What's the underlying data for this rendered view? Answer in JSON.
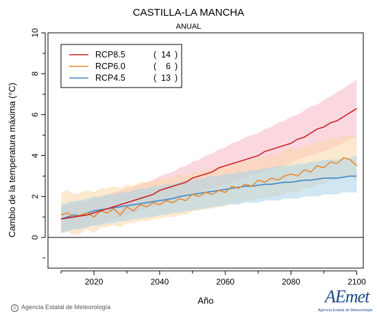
{
  "header": {
    "title": "CASTILLA-LA MANCHA",
    "subtitle": "ANUAL"
  },
  "footer": {
    "credit": "Agencia Estatal de Meteorología",
    "logo_text": "AEmet",
    "logo_caption": "Agencia Estatal de Meteorología"
  },
  "chart_data": {
    "type": "line",
    "title": "CASTILLA-LA MANCHA",
    "subtitle": "ANUAL",
    "xlabel": "Año",
    "ylabel": "Cambio de la temperatura máxima (°C)",
    "xlim": [
      2006,
      2102
    ],
    "ylim": [
      -1.5,
      10
    ],
    "x_ticks": [
      2020,
      2040,
      2060,
      2080,
      2100
    ],
    "y_ticks": [
      0,
      2,
      4,
      6,
      8,
      10
    ],
    "grid": false,
    "zero_line": 0,
    "legend_position": "top-left",
    "x": [
      2010,
      2012,
      2014,
      2016,
      2018,
      2020,
      2022,
      2024,
      2026,
      2028,
      2030,
      2032,
      2034,
      2036,
      2038,
      2040,
      2042,
      2044,
      2046,
      2048,
      2050,
      2052,
      2054,
      2056,
      2058,
      2060,
      2062,
      2064,
      2066,
      2068,
      2070,
      2072,
      2074,
      2076,
      2078,
      2080,
      2082,
      2084,
      2086,
      2088,
      2090,
      2092,
      2094,
      2096,
      2098,
      2100
    ],
    "series": [
      {
        "name": "RCP8.5",
        "count": "14",
        "color": "#cc2222",
        "band_color": "#f7b8c4",
        "values": [
          0.9,
          0.95,
          1.0,
          1.05,
          1.1,
          1.2,
          1.3,
          1.4,
          1.5,
          1.6,
          1.7,
          1.8,
          1.9,
          2.0,
          2.1,
          2.3,
          2.4,
          2.5,
          2.6,
          2.7,
          2.9,
          3.0,
          3.1,
          3.2,
          3.4,
          3.5,
          3.6,
          3.7,
          3.8,
          3.9,
          4.0,
          4.2,
          4.3,
          4.4,
          4.5,
          4.6,
          4.8,
          4.9,
          5.1,
          5.3,
          5.4,
          5.6,
          5.7,
          5.9,
          6.1,
          6.3
        ],
        "lower": [
          0.3,
          0.35,
          0.4,
          0.45,
          0.5,
          0.6,
          0.7,
          0.8,
          0.9,
          1.0,
          1.1,
          1.2,
          1.3,
          1.4,
          1.5,
          1.6,
          1.7,
          1.8,
          1.9,
          2.0,
          2.1,
          2.2,
          2.3,
          2.4,
          2.5,
          2.6,
          2.7,
          2.8,
          2.9,
          3.0,
          3.1,
          3.2,
          3.3,
          3.4,
          3.5,
          3.6,
          3.8,
          3.9,
          4.0,
          4.1,
          4.2,
          4.3,
          4.5,
          4.6,
          4.8,
          4.9
        ],
        "upper": [
          1.5,
          1.6,
          1.7,
          1.8,
          1.8,
          1.9,
          2.0,
          2.1,
          2.2,
          2.3,
          2.4,
          2.5,
          2.6,
          2.7,
          2.8,
          3.0,
          3.1,
          3.2,
          3.4,
          3.5,
          3.7,
          3.8,
          4.0,
          4.1,
          4.3,
          4.4,
          4.6,
          4.7,
          4.9,
          5.0,
          5.1,
          5.3,
          5.4,
          5.6,
          5.7,
          5.9,
          6.0,
          6.2,
          6.4,
          6.5,
          6.7,
          6.9,
          7.1,
          7.3,
          7.5,
          7.7
        ]
      },
      {
        "name": "RCP6.0",
        "count": "6",
        "color": "#e8892e",
        "band_color": "#fbd7a8",
        "values": [
          1.1,
          1.2,
          1.0,
          1.1,
          1.2,
          1.0,
          1.3,
          1.2,
          1.4,
          1.1,
          1.5,
          1.3,
          1.6,
          1.5,
          1.7,
          1.6,
          1.8,
          1.7,
          1.9,
          1.8,
          2.1,
          2.0,
          2.2,
          2.1,
          2.3,
          2.2,
          2.5,
          2.4,
          2.6,
          2.5,
          2.8,
          2.7,
          2.9,
          2.8,
          3.0,
          3.1,
          3.0,
          3.3,
          3.2,
          3.5,
          3.4,
          3.7,
          3.6,
          3.9,
          3.8,
          3.5
        ],
        "lower": [
          0.2,
          0.3,
          0.1,
          0.2,
          0.4,
          0.2,
          0.5,
          0.5,
          0.6,
          0.5,
          0.7,
          0.7,
          0.8,
          0.8,
          0.9,
          0.9,
          1.0,
          1.0,
          1.1,
          1.1,
          1.3,
          1.3,
          1.4,
          1.4,
          1.5,
          1.5,
          1.7,
          1.7,
          1.8,
          1.8,
          1.9,
          1.9,
          2.0,
          2.0,
          2.1,
          2.2,
          2.2,
          2.4,
          2.4,
          2.6,
          2.6,
          2.8,
          2.8,
          3.0,
          3.0,
          2.7
        ],
        "upper": [
          2.2,
          2.3,
          2.1,
          2.2,
          2.3,
          2.2,
          2.4,
          2.4,
          2.5,
          2.4,
          2.6,
          2.5,
          2.7,
          2.7,
          2.8,
          2.8,
          2.9,
          2.9,
          3.1,
          3.0,
          3.2,
          3.2,
          3.3,
          3.3,
          3.5,
          3.4,
          3.6,
          3.6,
          3.8,
          3.7,
          3.9,
          3.9,
          4.1,
          4.0,
          4.3,
          4.4,
          4.3,
          4.5,
          4.5,
          4.7,
          4.7,
          4.9,
          4.8,
          5.0,
          5.0,
          4.9
        ]
      },
      {
        "name": "RCP4.5",
        "count": "13",
        "color": "#3d87c8",
        "band_color": "#a9d4ea",
        "values": [
          0.9,
          1.0,
          1.1,
          1.05,
          1.2,
          1.3,
          1.35,
          1.4,
          1.45,
          1.5,
          1.55,
          1.6,
          1.65,
          1.7,
          1.75,
          1.8,
          1.85,
          1.9,
          2.0,
          2.05,
          2.1,
          2.15,
          2.2,
          2.25,
          2.3,
          2.35,
          2.4,
          2.45,
          2.5,
          2.5,
          2.55,
          2.6,
          2.6,
          2.65,
          2.7,
          2.7,
          2.75,
          2.8,
          2.8,
          2.85,
          2.9,
          2.9,
          2.9,
          2.95,
          3.0,
          3.0
        ],
        "lower": [
          0.2,
          0.3,
          0.4,
          0.4,
          0.5,
          0.6,
          0.6,
          0.7,
          0.7,
          0.8,
          0.8,
          0.9,
          0.9,
          1.0,
          1.0,
          1.1,
          1.1,
          1.2,
          1.2,
          1.3,
          1.3,
          1.4,
          1.4,
          1.5,
          1.5,
          1.6,
          1.6,
          1.6,
          1.7,
          1.7,
          1.7,
          1.8,
          1.8,
          1.8,
          1.9,
          1.9,
          1.9,
          2.0,
          2.0,
          2.0,
          2.1,
          2.1,
          2.1,
          2.2,
          2.2,
          2.2
        ],
        "upper": [
          1.6,
          1.7,
          1.8,
          1.8,
          1.9,
          2.0,
          2.0,
          2.1,
          2.1,
          2.2,
          2.2,
          2.3,
          2.4,
          2.4,
          2.5,
          2.5,
          2.6,
          2.6,
          2.7,
          2.8,
          2.8,
          2.9,
          2.9,
          3.0,
          3.0,
          3.1,
          3.1,
          3.2,
          3.2,
          3.3,
          3.3,
          3.4,
          3.4,
          3.5,
          3.5,
          3.5,
          3.6,
          3.6,
          3.7,
          3.7,
          3.8,
          3.8,
          3.8,
          3.9,
          3.9,
          4.0
        ]
      }
    ]
  }
}
